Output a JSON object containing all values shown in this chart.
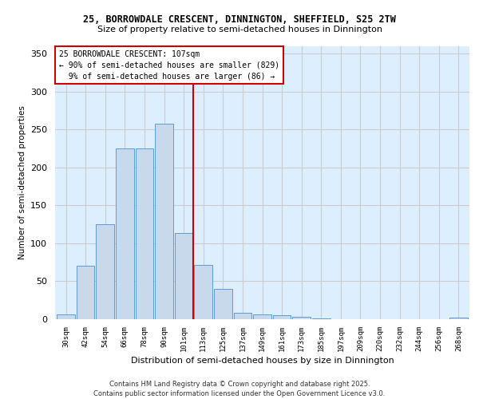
{
  "title1": "25, BORROWDALE CRESCENT, DINNINGTON, SHEFFIELD, S25 2TW",
  "title2": "Size of property relative to semi-detached houses in Dinnington",
  "xlabel": "Distribution of semi-detached houses by size in Dinnington",
  "ylabel": "Number of semi-detached properties",
  "bin_labels": [
    "30sqm",
    "42sqm",
    "54sqm",
    "66sqm",
    "78sqm",
    "90sqm",
    "101sqm",
    "113sqm",
    "125sqm",
    "137sqm",
    "149sqm",
    "161sqm",
    "173sqm",
    "185sqm",
    "197sqm",
    "209sqm",
    "220sqm",
    "232sqm",
    "244sqm",
    "256sqm",
    "268sqm"
  ],
  "bar_heights": [
    6,
    70,
    125,
    225,
    225,
    257,
    113,
    72,
    40,
    8,
    6,
    5,
    3,
    1,
    0,
    0,
    0,
    0,
    0,
    0,
    2
  ],
  "bar_color": "#c9d9ec",
  "bar_edge_color": "#5b9bd5",
  "pct_smaller": 90,
  "count_smaller": 829,
  "pct_larger": 9,
  "count_larger": 86,
  "vline_color": "#cc0000",
  "annotation_box_color": "#cc0000",
  "ylim": [
    0,
    360
  ],
  "yticks": [
    0,
    50,
    100,
    150,
    200,
    250,
    300,
    350
  ],
  "grid_color": "#cccccc",
  "bg_color": "#ddeeff",
  "footer1": "Contains HM Land Registry data © Crown copyright and database right 2025.",
  "footer2": "Contains public sector information licensed under the Open Government Licence v3.0."
}
